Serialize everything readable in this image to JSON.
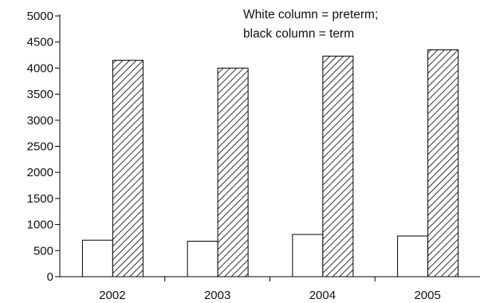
{
  "chart_data": {
    "type": "bar",
    "categories": [
      "2002",
      "2003",
      "2004",
      "2005"
    ],
    "series": [
      {
        "name": "preterm",
        "values": [
          700,
          680,
          810,
          780
        ]
      },
      {
        "name": "term",
        "values": [
          4150,
          4000,
          4230,
          4350
        ]
      }
    ],
    "title": "",
    "xlabel": "",
    "ylabel": "",
    "ylim": [
      0,
      5000
    ],
    "yticks": [
      0,
      500,
      1000,
      1500,
      2000,
      2500,
      3000,
      3500,
      4000,
      4500,
      5000
    ],
    "legend_lines": [
      "White column = preterm;",
      "black column = term"
    ],
    "legend_position": "top-right",
    "grid": false,
    "colors": {
      "axis": "#000000",
      "preterm_fill": "#ffffff",
      "term_hatch": "#000000"
    }
  }
}
